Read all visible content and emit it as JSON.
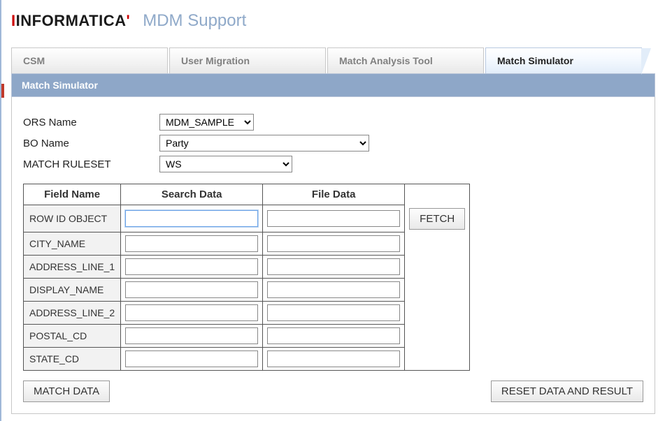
{
  "brand": {
    "name_pre": "INFORMAT",
    "name_i": "I",
    "name_post": "CA",
    "apostrophe": "'"
  },
  "app_title": "MDM Support",
  "tabs": [
    {
      "label": "CSM",
      "active": false
    },
    {
      "label": "User Migration",
      "active": false
    },
    {
      "label": "Match Analysis Tool",
      "active": false
    },
    {
      "label": "Match Simulator",
      "active": true
    }
  ],
  "subheader": "Match Simulator",
  "form": {
    "ors_label": "ORS Name",
    "ors_value": "MDM_SAMPLE",
    "bo_label": "BO Name",
    "bo_value": "Party",
    "ruleset_label": "MATCH RULESET",
    "ruleset_value": "WS"
  },
  "table": {
    "headers": {
      "field": "Field Name",
      "search": "Search Data",
      "file": "File Data"
    },
    "rows": [
      {
        "field": "ROW ID OBJECT",
        "search": "",
        "file": "",
        "has_fetch": true
      },
      {
        "field": "CITY_NAME",
        "search": "",
        "file": ""
      },
      {
        "field": "ADDRESS_LINE_1",
        "search": "",
        "file": ""
      },
      {
        "field": "DISPLAY_NAME",
        "search": "",
        "file": ""
      },
      {
        "field": "ADDRESS_LINE_2",
        "search": "",
        "file": ""
      },
      {
        "field": "POSTAL_CD",
        "search": "",
        "file": ""
      },
      {
        "field": "STATE_CD",
        "search": "",
        "file": ""
      }
    ],
    "fetch_label": "FETCH"
  },
  "actions": {
    "match": "MATCH DATA",
    "reset": "RESET DATA AND RESULT"
  },
  "colors": {
    "tab_active_bg": "#e2edf9",
    "subheader_bg": "#8ea7c8",
    "brand_red": "#cc0000",
    "title_color": "#8fa9c9"
  }
}
